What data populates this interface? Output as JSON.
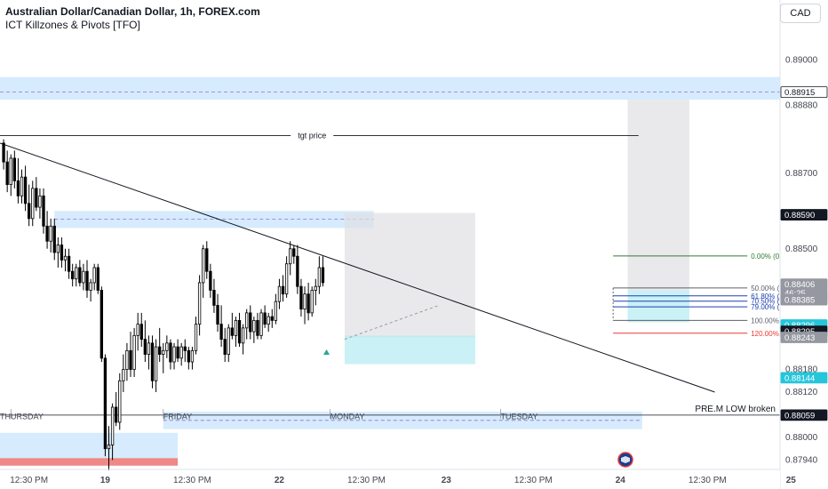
{
  "header": {
    "title": "Australian Dollar/Canadian Dollar, 1h, FOREX.com",
    "indicator": "ICT Killzones & Pivots [TFO]",
    "currency": "CAD"
  },
  "colors": {
    "up": "#ffffff",
    "down": "#000000",
    "wick": "#000000",
    "zone_blue": "#bbdefb",
    "zone_gray": "#e0e0e3",
    "zone_cyan": "#b2ebf2",
    "fib_green": "#2e7d32",
    "fib_blue": "#1e40af",
    "fib_red": "#e53935",
    "fib_gray": "#5d606b",
    "tag_dark": "#131722",
    "tag_gray": "#9598a1",
    "tag_cyan": "#26c6da"
  },
  "chart_data": {
    "type": "candlestick",
    "symbol": "AUD/CAD",
    "timeframe": "1h",
    "ylim": [
      0.87915,
      0.89065
    ],
    "xlim": [
      -1,
      214
    ],
    "y_ticks": [
      "0.89000",
      "0.88880",
      "0.88700",
      "0.88500",
      "0.88180",
      "0.88120",
      "0.88000",
      "0.87940"
    ],
    "x_ticks": [
      {
        "label": "12:30 PM",
        "x": 7
      },
      {
        "label": "19",
        "x": 28
      },
      {
        "label": "12:30 PM",
        "x": 52
      },
      {
        "label": "22",
        "x": 76
      },
      {
        "label": "12:30 PM",
        "x": 100
      },
      {
        "label": "23",
        "x": 122
      },
      {
        "label": "12:30 PM",
        "x": 146
      },
      {
        "label": "24",
        "x": 170
      },
      {
        "label": "12:30 PM",
        "x": 194
      },
      {
        "label": "25",
        "x": 217
      }
    ],
    "session_labels": [
      {
        "label": "THURSDAY",
        "x": 2
      },
      {
        "label": "FRIDAY",
        "x": 44
      },
      {
        "label": "MONDAY",
        "x": 90
      },
      {
        "label": "TUESDAY",
        "x": 137
      }
    ],
    "candles": [
      [
        0.8878,
        0.8879,
        0.8871,
        0.8873
      ],
      [
        0.8873,
        0.8876,
        0.8865,
        0.8867
      ],
      [
        0.8867,
        0.8875,
        0.8864,
        0.8874
      ],
      [
        0.8874,
        0.8876,
        0.8866,
        0.8868
      ],
      [
        0.8868,
        0.8874,
        0.8862,
        0.8864
      ],
      [
        0.8864,
        0.8871,
        0.8862,
        0.8869
      ],
      [
        0.8869,
        0.8872,
        0.886,
        0.8862
      ],
      [
        0.8862,
        0.8867,
        0.8856,
        0.8858
      ],
      [
        0.8858,
        0.8868,
        0.8856,
        0.8866
      ],
      [
        0.8866,
        0.8869,
        0.886,
        0.8861
      ],
      [
        0.8861,
        0.8866,
        0.8858,
        0.8864
      ],
      [
        0.8864,
        0.8866,
        0.8854,
        0.8856
      ],
      [
        0.8856,
        0.886,
        0.885,
        0.8852
      ],
      [
        0.8852,
        0.8858,
        0.8849,
        0.8856
      ],
      [
        0.8856,
        0.8858,
        0.8847,
        0.8849
      ],
      [
        0.8849,
        0.8853,
        0.8845,
        0.8851
      ],
      [
        0.8851,
        0.8853,
        0.8845,
        0.8847
      ],
      [
        0.8847,
        0.885,
        0.8844,
        0.8848
      ],
      [
        0.8848,
        0.885,
        0.8842,
        0.8844
      ],
      [
        0.8844,
        0.8846,
        0.884,
        0.8842
      ],
      [
        0.8842,
        0.8846,
        0.884,
        0.8845
      ],
      [
        0.8845,
        0.8847,
        0.884,
        0.8841
      ],
      [
        0.8841,
        0.8846,
        0.8839,
        0.8844
      ],
      [
        0.8844,
        0.8847,
        0.8837,
        0.8839
      ],
      [
        0.8839,
        0.8842,
        0.8836,
        0.8841
      ],
      [
        0.8841,
        0.8846,
        0.8839,
        0.8845
      ],
      [
        0.8845,
        0.8846,
        0.8838,
        0.8839
      ],
      [
        0.8839,
        0.884,
        0.882,
        0.8821
      ],
      [
        0.8821,
        0.8822,
        0.8795,
        0.8797
      ],
      [
        0.8797,
        0.8803,
        0.8791,
        0.8798
      ],
      [
        0.8798,
        0.8809,
        0.8794,
        0.8808
      ],
      [
        0.8808,
        0.8812,
        0.8803,
        0.8804
      ],
      [
        0.8804,
        0.8817,
        0.8802,
        0.8815
      ],
      [
        0.8815,
        0.8822,
        0.8812,
        0.8818
      ],
      [
        0.8818,
        0.8825,
        0.8815,
        0.8823
      ],
      [
        0.8823,
        0.8828,
        0.8816,
        0.8818
      ],
      [
        0.8818,
        0.8829,
        0.8816,
        0.8827
      ],
      [
        0.8827,
        0.8833,
        0.8823,
        0.883
      ],
      [
        0.883,
        0.8833,
        0.8824,
        0.8826
      ],
      [
        0.8826,
        0.8831,
        0.882,
        0.8822
      ],
      [
        0.8822,
        0.8827,
        0.8818,
        0.8825
      ],
      [
        0.8825,
        0.8827,
        0.8813,
        0.8815
      ],
      [
        0.8815,
        0.8826,
        0.8812,
        0.8824
      ],
      [
        0.8824,
        0.8829,
        0.882,
        0.8822
      ],
      [
        0.8822,
        0.8825,
        0.8817,
        0.8823
      ],
      [
        0.8823,
        0.8827,
        0.8821,
        0.8825
      ],
      [
        0.8825,
        0.8826,
        0.8818,
        0.882
      ],
      [
        0.882,
        0.8825,
        0.8818,
        0.8824
      ],
      [
        0.8824,
        0.8826,
        0.882,
        0.8821
      ],
      [
        0.8821,
        0.8825,
        0.8819,
        0.8824
      ],
      [
        0.8824,
        0.8826,
        0.882,
        0.8823
      ],
      [
        0.8823,
        0.8824,
        0.8818,
        0.882
      ],
      [
        0.882,
        0.8824,
        0.8818,
        0.8823
      ],
      [
        0.8823,
        0.8832,
        0.8822,
        0.883
      ],
      [
        0.883,
        0.8843,
        0.8827,
        0.8841
      ],
      [
        0.8841,
        0.8851,
        0.8837,
        0.885
      ],
      [
        0.885,
        0.8852,
        0.8842,
        0.8844
      ],
      [
        0.8844,
        0.8846,
        0.8837,
        0.8839
      ],
      [
        0.8839,
        0.8842,
        0.8833,
        0.8835
      ],
      [
        0.8835,
        0.8838,
        0.8828,
        0.883
      ],
      [
        0.883,
        0.8835,
        0.8824,
        0.8826
      ],
      [
        0.8826,
        0.8829,
        0.882,
        0.8822
      ],
      [
        0.8822,
        0.883,
        0.882,
        0.8829
      ],
      [
        0.8829,
        0.8833,
        0.8826,
        0.8827
      ],
      [
        0.8827,
        0.8832,
        0.8824,
        0.8831
      ],
      [
        0.8831,
        0.8833,
        0.8824,
        0.8825
      ],
      [
        0.8825,
        0.883,
        0.8822,
        0.8829
      ],
      [
        0.8829,
        0.8834,
        0.8826,
        0.8833
      ],
      [
        0.8833,
        0.8835,
        0.8826,
        0.8828
      ],
      [
        0.8828,
        0.8832,
        0.8825,
        0.8831
      ],
      [
        0.8831,
        0.8833,
        0.8826,
        0.8827
      ],
      [
        0.8827,
        0.8834,
        0.8826,
        0.8833
      ],
      [
        0.8833,
        0.8835,
        0.8829,
        0.883
      ],
      [
        0.883,
        0.8833,
        0.8828,
        0.8832
      ],
      [
        0.8832,
        0.8834,
        0.8829,
        0.8831
      ],
      [
        0.8831,
        0.8838,
        0.883,
        0.8836
      ],
      [
        0.8836,
        0.8842,
        0.8834,
        0.884
      ],
      [
        0.884,
        0.8843,
        0.8836,
        0.8838
      ],
      [
        0.8838,
        0.8848,
        0.8837,
        0.8846
      ],
      [
        0.8846,
        0.8852,
        0.8843,
        0.885
      ],
      [
        0.885,
        0.8851,
        0.8846,
        0.8848
      ],
      [
        0.8848,
        0.8851,
        0.8838,
        0.884
      ],
      [
        0.884,
        0.8842,
        0.8832,
        0.8834
      ],
      [
        0.8834,
        0.884,
        0.883,
        0.8838
      ],
      [
        0.8838,
        0.8841,
        0.8831,
        0.8833
      ],
      [
        0.8833,
        0.884,
        0.8832,
        0.8839
      ],
      [
        0.8839,
        0.8842,
        0.8835,
        0.884
      ],
      [
        0.884,
        0.8848,
        0.8838,
        0.8845
      ],
      [
        0.8845,
        0.8848,
        0.884,
        0.8841
      ]
    ],
    "levels": [
      {
        "label": "tgt price",
        "price": 0.888,
        "x_from": -1,
        "x_to": 175,
        "label_x": 85
      },
      {
        "label": "PRE.M LOW broken",
        "price": 0.88059,
        "x_from": -1,
        "x_to": 214
      }
    ],
    "fib_levels": [
      {
        "label": "0.00% (0.88481)",
        "pct": 0.0,
        "price": 0.88481,
        "style": "green"
      },
      {
        "label": "50.00% (0.88396)",
        "pct": 50.0,
        "price": 0.88396,
        "style": "gray"
      },
      {
        "label": "61.80% (0.88375)",
        "pct": 61.8,
        "price": 0.88375,
        "style": "blue"
      },
      {
        "label": "70.50% (0.88361)",
        "pct": 70.5,
        "price": 0.88361,
        "style": "blue"
      },
      {
        "label": "79.00% (0.88346)",
        "pct": 79.0,
        "price": 0.88346,
        "style": "blue"
      },
      {
        "label": "100.00% (0.88310)",
        "pct": 100.0,
        "price": 0.8831,
        "style": "gray"
      },
      {
        "label": "120.00% (0.88276)",
        "pct": 120.0,
        "price": 0.88276,
        "style": "red"
      }
    ],
    "fib_x_from": 168,
    "fib_x_to": 205,
    "zones": [
      {
        "kind": "blue",
        "x_from": -1,
        "x_to": 214,
        "top": 0.88955,
        "bottom": 0.88895,
        "mid": 0.88915
      },
      {
        "kind": "blue",
        "x_from": 14,
        "x_to": 102,
        "top": 0.886,
        "bottom": 0.88555,
        "mid": 0.88578
      },
      {
        "kind": "blue",
        "x_from": 44,
        "x_to": 176,
        "top": 0.88068,
        "bottom": 0.88022,
        "mid": 0.88045
      },
      {
        "kind": "blue",
        "x_from": -1,
        "x_to": 48,
        "top": 0.88012,
        "bottom": 0.87945
      },
      {
        "kind": "red",
        "x_from": -1,
        "x_to": 48,
        "top": 0.87945,
        "bottom": 0.87925
      },
      {
        "kind": "gray",
        "x_from": 94,
        "x_to": 130,
        "top": 0.88595,
        "bottom": 0.88265
      },
      {
        "kind": "gray",
        "x_from": 172,
        "x_to": 189,
        "top": 0.88895,
        "bottom": 0.8839
      },
      {
        "kind": "cyan",
        "x_from": 94,
        "x_to": 130,
        "top": 0.8827,
        "bottom": 0.88194
      },
      {
        "kind": "cyan",
        "x_from": 172,
        "x_to": 189,
        "top": 0.8839,
        "bottom": 0.88305
      }
    ],
    "trendlines": [
      {
        "from": [
          -1,
          0.8878
        ],
        "to": [
          196,
          0.8812
        ]
      },
      {
        "from": [
          94,
          0.8826
        ],
        "to": [
          120,
          0.8835
        ]
      }
    ],
    "marker": {
      "kind": "up-triangle",
      "x": 89,
      "price": 0.88226
    },
    "price_tags": [
      {
        "label": "0.88915",
        "price": 0.88915,
        "style": "outline"
      },
      {
        "label": "0.88590",
        "price": 0.8859,
        "style": "dark"
      },
      {
        "label": "0.88406",
        "price": 0.88406,
        "style": "gray",
        "sub": "46:25"
      },
      {
        "label": "0.88385",
        "price": 0.88365,
        "style": "gray"
      },
      {
        "label": "0.88296",
        "price": 0.88298,
        "style": "cyan"
      },
      {
        "label": "0.88295",
        "price": 0.88281,
        "style": "dark"
      },
      {
        "label": "0.88243",
        "price": 0.88265,
        "style": "gray"
      },
      {
        "label": "0.88144",
        "price": 0.88158,
        "style": "cyan"
      },
      {
        "label": "0.88059",
        "price": 0.88059,
        "style": "dark"
      }
    ]
  }
}
